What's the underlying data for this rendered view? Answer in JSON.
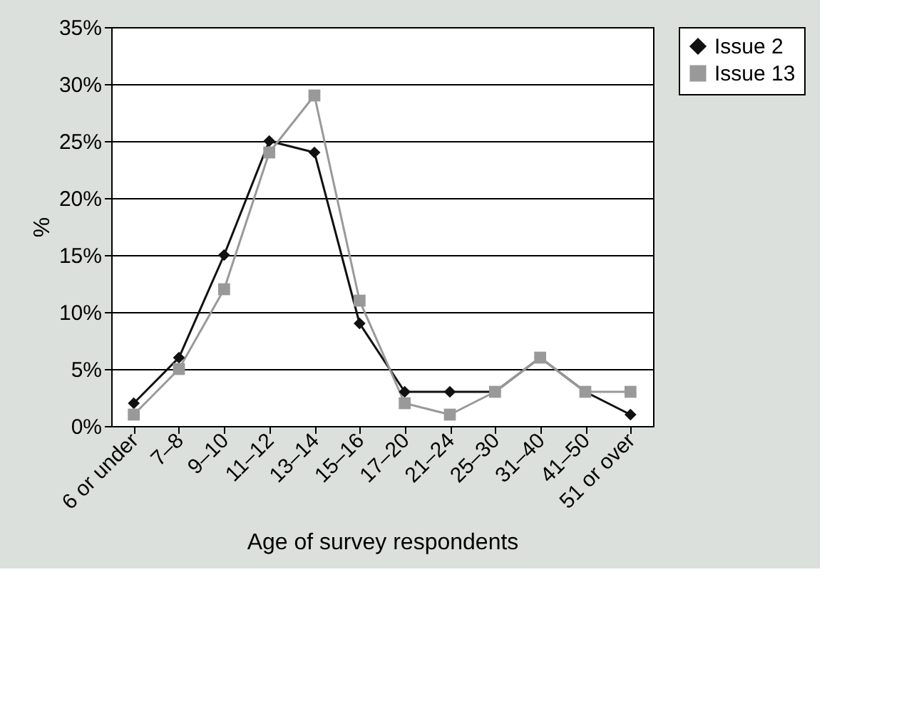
{
  "chart_data": {
    "type": "line",
    "xlabel": "Age of survey respondents",
    "ylabel": "%",
    "categories": [
      "6 or under",
      "7–8",
      "9–10",
      "11–12",
      "13–14",
      "15–16",
      "17–20",
      "21–24",
      "25–30",
      "31–40",
      "41–50",
      "51 or over"
    ],
    "series": [
      {
        "name": "Issue 2",
        "color": "#111111",
        "marker": "diamond",
        "values": [
          2,
          6,
          15,
          25,
          24,
          9,
          3,
          3,
          3,
          6,
          3,
          1
        ]
      },
      {
        "name": "Issue 13",
        "color": "#999999",
        "marker": "square",
        "values": [
          1,
          5,
          12,
          24,
          29,
          11,
          2,
          1,
          3,
          6,
          3,
          3
        ]
      }
    ],
    "ylim": [
      0,
      35
    ],
    "yticks": [
      {
        "value": 0,
        "label": "0%"
      },
      {
        "value": 5,
        "label": "5%"
      },
      {
        "value": 10,
        "label": "10%"
      },
      {
        "value": 15,
        "label": "15%"
      },
      {
        "value": 20,
        "label": "20%"
      },
      {
        "value": 25,
        "label": "25%"
      },
      {
        "value": 30,
        "label": "30%"
      },
      {
        "value": 35,
        "label": "35%"
      }
    ],
    "grid": "y",
    "legend": "right",
    "line_style": "solid"
  }
}
